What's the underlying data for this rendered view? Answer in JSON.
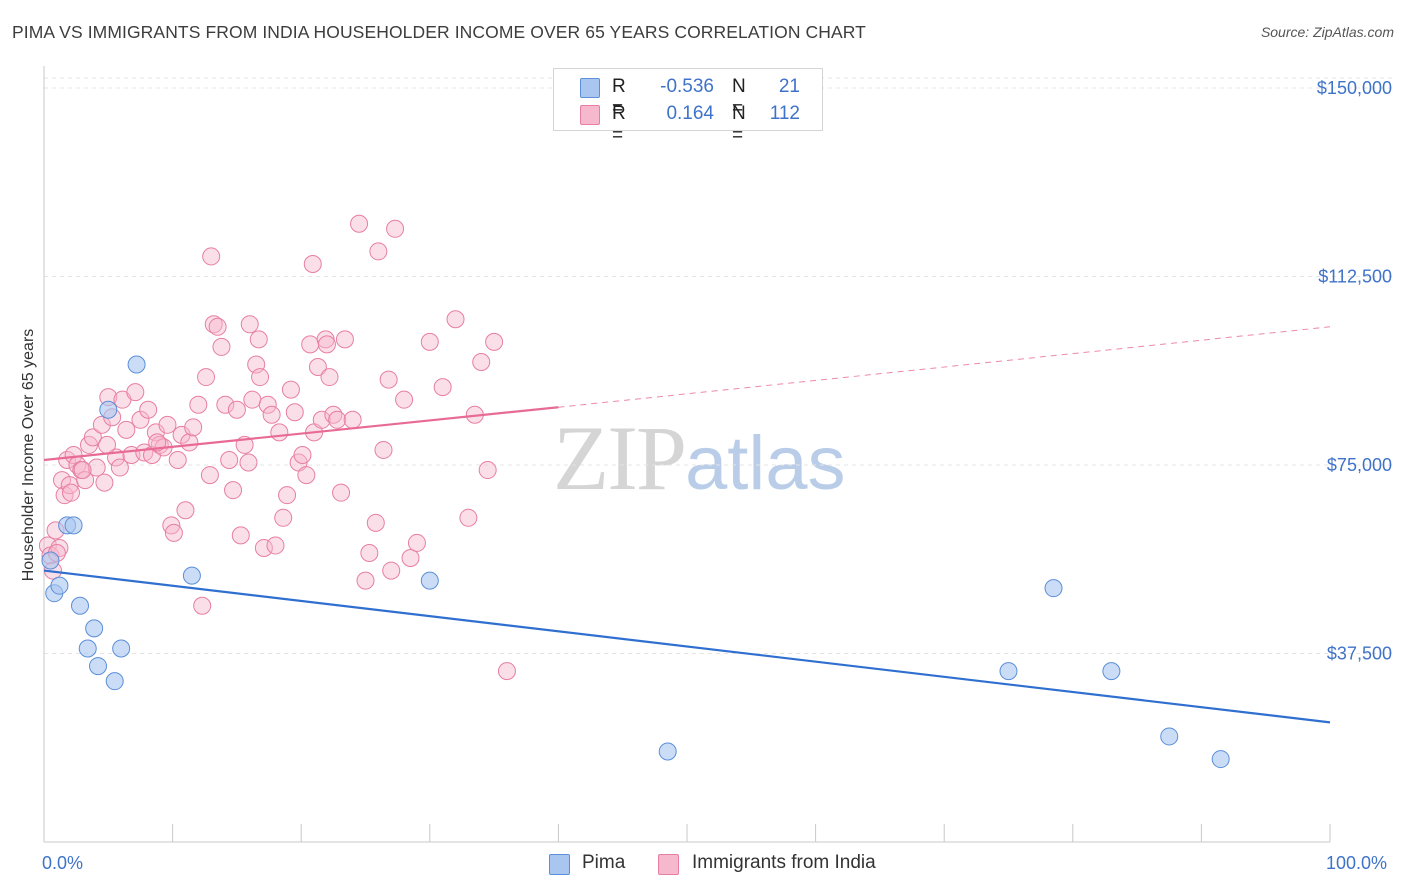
{
  "header": {
    "title": "PIMA VS IMMIGRANTS FROM INDIA HOUSEHOLDER INCOME OVER 65 YEARS CORRELATION CHART",
    "source": "Source: ZipAtlas.com"
  },
  "watermark": {
    "zip": "ZIP",
    "atlas": "atlas"
  },
  "legend": {
    "rows": [
      {
        "r_label": "R =",
        "r_value": "-0.536",
        "n_label": "N =",
        "n_value": "21",
        "color": "#a9c6f0"
      },
      {
        "r_label": "R =",
        "r_value": "0.164",
        "n_label": "N =",
        "n_value": "112",
        "color": "#f6b8cc"
      }
    ]
  },
  "bottom_legend": [
    {
      "label": "Pima",
      "color": "#a9c6f0"
    },
    {
      "label": "Immigrants from India",
      "color": "#f6b8cc"
    }
  ],
  "colors": {
    "pima_fill": "#a9c6f0",
    "pima_stroke": "#5b8fd8",
    "pima_line": "#2f6fd0",
    "india_fill": "#f6b8cc",
    "india_stroke": "#e77fa2",
    "india_line": "#e86a96",
    "grid": "#e4e4e4",
    "tick_label": "#3f73c9"
  },
  "chart_data": {
    "type": "scatter",
    "title": "PIMA VS IMMIGRANTS FROM INDIA HOUSEHOLDER INCOME OVER 65 YEARS CORRELATION CHART",
    "xlabel": "",
    "ylabel": "Householder Income Over 65 years",
    "xlim": [
      0,
      100
    ],
    "ylim": [
      0,
      152000
    ],
    "x_tick_labels": [
      "0.0%",
      "100.0%"
    ],
    "y_ticks": [
      37500,
      75000,
      112500,
      150000
    ],
    "y_tick_labels": [
      "$37,500",
      "$75,000",
      "$112,500",
      "$150,000"
    ],
    "grid": "horizontal dashed",
    "series": [
      {
        "name": "Pima",
        "points": [
          [
            0.5,
            56000
          ],
          [
            0.8,
            49500
          ],
          [
            1.2,
            51000
          ],
          [
            1.8,
            63000
          ],
          [
            2.3,
            63000
          ],
          [
            2.8,
            47000
          ],
          [
            3.4,
            38500
          ],
          [
            3.9,
            42500
          ],
          [
            4.2,
            35000
          ],
          [
            5.5,
            32000
          ],
          [
            6.0,
            38500
          ],
          [
            7.2,
            95000
          ],
          [
            5.0,
            86000
          ],
          [
            11.5,
            53000
          ],
          [
            30.0,
            52000
          ],
          [
            48.5,
            18000
          ],
          [
            75.0,
            34000
          ],
          [
            78.5,
            50500
          ],
          [
            83.0,
            34000
          ],
          [
            87.5,
            21000
          ],
          [
            91.5,
            16500
          ]
        ],
        "trend": {
          "x": [
            0,
            100
          ],
          "y": [
            54000,
            23800
          ]
        }
      },
      {
        "name": "Immigrants from India",
        "points": [
          [
            0.3,
            59000
          ],
          [
            0.5,
            57000
          ],
          [
            0.7,
            54000
          ],
          [
            0.9,
            62000
          ],
          [
            1.2,
            58500
          ],
          [
            1.4,
            72000
          ],
          [
            1.6,
            69000
          ],
          [
            1.8,
            76000
          ],
          [
            2.0,
            71000
          ],
          [
            2.3,
            77000
          ],
          [
            2.6,
            75000
          ],
          [
            2.9,
            74000
          ],
          [
            3.2,
            72000
          ],
          [
            3.5,
            79000
          ],
          [
            3.8,
            80500
          ],
          [
            4.1,
            74500
          ],
          [
            4.5,
            83000
          ],
          [
            4.7,
            71500
          ],
          [
            5.0,
            88500
          ],
          [
            5.3,
            84500
          ],
          [
            5.6,
            76500
          ],
          [
            5.9,
            74500
          ],
          [
            6.1,
            88000
          ],
          [
            6.4,
            82000
          ],
          [
            6.8,
            77000
          ],
          [
            7.1,
            89500
          ],
          [
            7.5,
            84000
          ],
          [
            7.8,
            77500
          ],
          [
            8.1,
            86000
          ],
          [
            8.4,
            77000
          ],
          [
            8.7,
            81500
          ],
          [
            9.0,
            79000
          ],
          [
            9.3,
            78500
          ],
          [
            9.6,
            83000
          ],
          [
            9.9,
            63000
          ],
          [
            10.1,
            61500
          ],
          [
            10.4,
            76000
          ],
          [
            10.7,
            81000
          ],
          [
            11.0,
            66000
          ],
          [
            11.3,
            79500
          ],
          [
            11.6,
            82500
          ],
          [
            12.0,
            87000
          ],
          [
            12.3,
            47000
          ],
          [
            12.6,
            92500
          ],
          [
            12.9,
            73000
          ],
          [
            13.2,
            103000
          ],
          [
            13.5,
            102500
          ],
          [
            13.8,
            98500
          ],
          [
            14.1,
            87000
          ],
          [
            14.4,
            76000
          ],
          [
            14.7,
            70000
          ],
          [
            15.0,
            86000
          ],
          [
            15.3,
            61000
          ],
          [
            15.6,
            79000
          ],
          [
            15.9,
            75500
          ],
          [
            16.2,
            88000
          ],
          [
            16.5,
            95000
          ],
          [
            16.8,
            92500
          ],
          [
            17.1,
            58500
          ],
          [
            17.4,
            87000
          ],
          [
            17.7,
            85000
          ],
          [
            18.0,
            59000
          ],
          [
            18.3,
            81500
          ],
          [
            18.6,
            64500
          ],
          [
            18.9,
            69000
          ],
          [
            19.2,
            90000
          ],
          [
            19.5,
            85500
          ],
          [
            19.8,
            75500
          ],
          [
            20.1,
            77000
          ],
          [
            20.4,
            73000
          ],
          [
            20.7,
            99000
          ],
          [
            21.0,
            81500
          ],
          [
            21.3,
            94500
          ],
          [
            21.6,
            84000
          ],
          [
            21.9,
            100000
          ],
          [
            22.2,
            92500
          ],
          [
            22.5,
            85000
          ],
          [
            22.8,
            84000
          ],
          [
            23.1,
            69500
          ],
          [
            23.4,
            100000
          ],
          [
            16.0,
            103000
          ],
          [
            22.0,
            99000
          ],
          [
            24.0,
            84000
          ],
          [
            25.0,
            52000
          ],
          [
            25.3,
            57500
          ],
          [
            25.8,
            63500
          ],
          [
            26.0,
            117500
          ],
          [
            26.4,
            78000
          ],
          [
            26.8,
            92000
          ],
          [
            27.0,
            54000
          ],
          [
            24.5,
            123000
          ],
          [
            27.3,
            122000
          ],
          [
            28.0,
            88000
          ],
          [
            28.5,
            56500
          ],
          [
            29.0,
            59500
          ],
          [
            30.0,
            99500
          ],
          [
            31.0,
            90500
          ],
          [
            32.0,
            104000
          ],
          [
            33.0,
            64500
          ],
          [
            33.5,
            85000
          ],
          [
            34.0,
            95500
          ],
          [
            34.5,
            74000
          ],
          [
            35.0,
            99500
          ],
          [
            36.0,
            34000
          ],
          [
            3.0,
            74000
          ],
          [
            1.0,
            57500
          ],
          [
            2.1,
            69500
          ],
          [
            4.9,
            79000
          ],
          [
            8.8,
            79500
          ],
          [
            13.0,
            116500
          ],
          [
            16.7,
            100000
          ],
          [
            20.9,
            115000
          ]
        ],
        "trend_solid": {
          "x": [
            0,
            40
          ],
          "y": [
            76000,
            86500
          ]
        },
        "trend_dashed": {
          "x": [
            40,
            100
          ],
          "y": [
            86500,
            102500
          ]
        }
      }
    ]
  }
}
